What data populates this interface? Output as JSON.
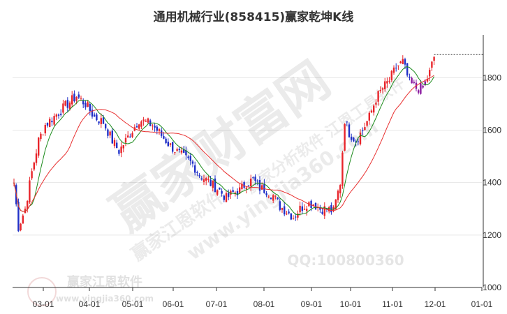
{
  "chart_data": {
    "type": "candlestick",
    "title": "通用机械行业(858415)赢家乾坤K线",
    "xlabel": "",
    "ylabel": "",
    "x_tick_labels": [
      "03-01",
      "04-01",
      "05-01",
      "06-01",
      "07-01",
      "08-01",
      "09-01",
      "10-01",
      "11-01",
      "12-01",
      "01-01"
    ],
    "y_ticks": [
      1000,
      1200,
      1400,
      1600,
      1800
    ],
    "ylim": [
      1000,
      1950
    ],
    "grid": "horizontal",
    "last_close_line": 1888,
    "up_color": "#e8242a",
    "down_color": "#2030c8",
    "special_color": "#8a1aa0",
    "ma_short_color": "#1a8a1a",
    "ma_long_color": "#e83030",
    "watermarks": [
      "赢家财富网",
      "赢家江恩软件",
      "赢家分析软件 江恩工具软件",
      "www.yingjia360.com",
      "QQ:100800360",
      "赢家江恩软件",
      "www.yingjia360.com"
    ],
    "anchors": [
      [
        0,
        1400
      ],
      [
        2,
        1230
      ],
      [
        5,
        1300
      ],
      [
        8,
        1440
      ],
      [
        11,
        1560
      ],
      [
        14,
        1620
      ],
      [
        19,
        1660
      ],
      [
        24,
        1700
      ],
      [
        28,
        1730
      ],
      [
        32,
        1700
      ],
      [
        36,
        1650
      ],
      [
        40,
        1630
      ],
      [
        44,
        1560
      ],
      [
        47,
        1520
      ],
      [
        50,
        1560
      ],
      [
        53,
        1600
      ],
      [
        56,
        1640
      ],
      [
        59,
        1630
      ],
      [
        62,
        1620
      ],
      [
        66,
        1580
      ],
      [
        70,
        1540
      ],
      [
        74,
        1510
      ],
      [
        77,
        1490
      ],
      [
        80,
        1470
      ],
      [
        83,
        1430
      ],
      [
        86,
        1410
      ],
      [
        89,
        1390
      ],
      [
        92,
        1370
      ],
      [
        95,
        1340
      ],
      [
        98,
        1360
      ],
      [
        101,
        1370
      ],
      [
        104,
        1400
      ],
      [
        107,
        1410
      ],
      [
        110,
        1380
      ],
      [
        113,
        1370
      ],
      [
        116,
        1350
      ],
      [
        119,
        1310
      ],
      [
        122,
        1290
      ],
      [
        125,
        1270
      ],
      [
        128,
        1300
      ],
      [
        131,
        1320
      ],
      [
        134,
        1320
      ],
      [
        137,
        1300
      ],
      [
        140,
        1300
      ],
      [
        143,
        1290
      ],
      [
        146,
        1400
      ],
      [
        148,
        1640
      ],
      [
        150,
        1590
      ],
      [
        153,
        1560
      ],
      [
        156,
        1600
      ],
      [
        159,
        1650
      ],
      [
        162,
        1720
      ],
      [
        165,
        1760
      ],
      [
        168,
        1790
      ],
      [
        171,
        1840
      ],
      [
        174,
        1860
      ],
      [
        177,
        1780
      ],
      [
        180,
        1760
      ],
      [
        183,
        1760
      ],
      [
        186,
        1820
      ],
      [
        188,
        1880
      ]
    ]
  }
}
